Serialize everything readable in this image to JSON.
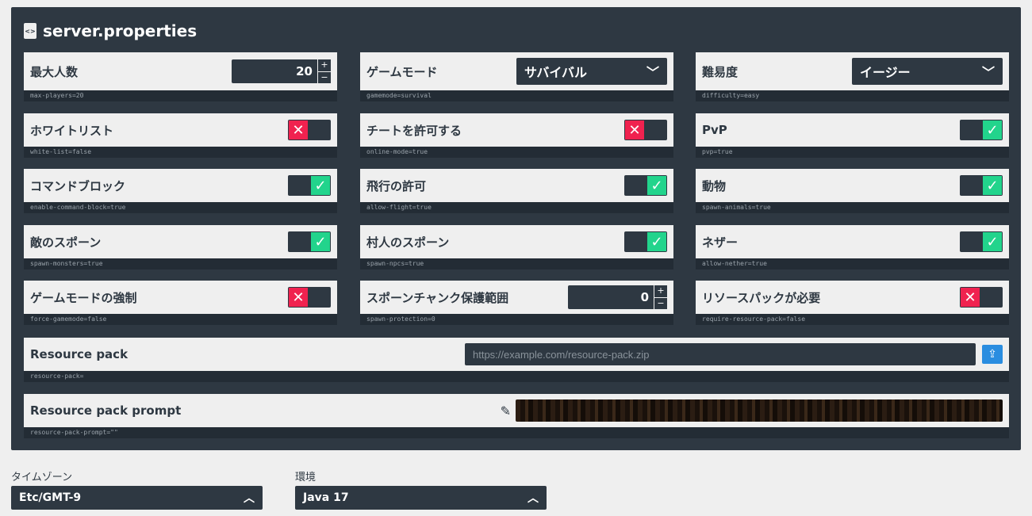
{
  "title": "server.properties",
  "colors": {
    "panel": "#2e3842",
    "off": "#f0224f",
    "on": "#22d48c",
    "upload": "#2a8de0"
  },
  "settings": [
    {
      "label": "最大人数",
      "type": "number",
      "value": "20",
      "key": "max-players=20"
    },
    {
      "label": "ゲームモード",
      "type": "select",
      "value": "サバイバル",
      "key": "gamemode=survival"
    },
    {
      "label": "難易度",
      "type": "select",
      "value": "イージー",
      "key": "difficulty=easy"
    },
    {
      "label": "ホワイトリスト",
      "type": "toggle",
      "value": false,
      "key": "white-list=false"
    },
    {
      "label": "チートを許可する",
      "type": "toggle",
      "value": false,
      "key": "online-mode=true"
    },
    {
      "label": "PvP",
      "type": "toggle",
      "value": true,
      "key": "pvp=true"
    },
    {
      "label": "コマンドブロック",
      "type": "toggle",
      "value": true,
      "key": "enable-command-block=true"
    },
    {
      "label": "飛行の許可",
      "type": "toggle",
      "value": true,
      "key": "allow-flight=true"
    },
    {
      "label": "動物",
      "type": "toggle",
      "value": true,
      "key": "spawn-animals=true"
    },
    {
      "label": "敵のスポーン",
      "type": "toggle",
      "value": true,
      "key": "spawn-monsters=true"
    },
    {
      "label": "村人のスポーン",
      "type": "toggle",
      "value": true,
      "key": "spawn-npcs=true"
    },
    {
      "label": "ネザー",
      "type": "toggle",
      "value": true,
      "key": "allow-nether=true"
    },
    {
      "label": "ゲームモードの強制",
      "type": "toggle",
      "value": false,
      "key": "force-gamemode=false"
    },
    {
      "label": "スポーンチャンク保護範囲",
      "type": "number",
      "value": "0",
      "key": "spawn-protection=0"
    },
    {
      "label": "リソースパックが必要",
      "type": "toggle",
      "value": false,
      "key": "require-resource-pack=false"
    }
  ],
  "resource_pack": {
    "label": "Resource pack",
    "placeholder": "https://example.com/resource-pack.zip",
    "key": "resource-pack="
  },
  "resource_pack_prompt": {
    "label": "Resource pack prompt",
    "key": "resource-pack-prompt=\"\""
  },
  "timezone": {
    "label": "タイムゾーン",
    "value": "Etc/GMT-9"
  },
  "environment": {
    "label": "環境",
    "value": "Java 17"
  }
}
